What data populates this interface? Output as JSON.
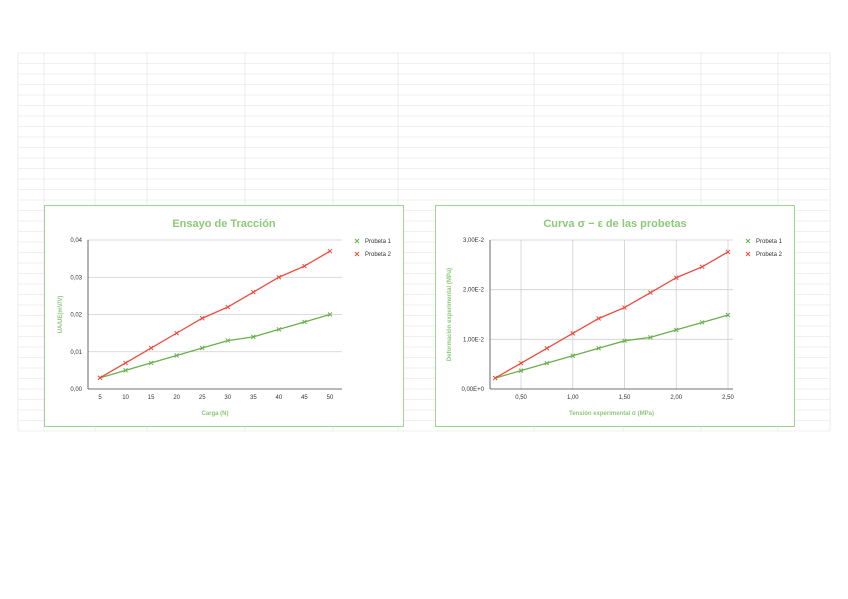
{
  "colors": {
    "accent": "#8cc97a",
    "series1": "#6ab04c",
    "series2": "#f04a3c",
    "frame": "#9fd18f"
  },
  "chart_data": [
    {
      "type": "line",
      "title": "Ensayo de Tracción",
      "xlabel": "Carga (N)",
      "ylabel": "UA/UE(mV/V)",
      "categories": [
        "5",
        "10",
        "15",
        "20",
        "25",
        "30",
        "35",
        "40",
        "45",
        "50"
      ],
      "yticks": [
        "0,00",
        "0,01",
        "0,02",
        "0,03",
        "0,04"
      ],
      "ylim": [
        0,
        0.04
      ],
      "grid": "horizontal",
      "legend": "right",
      "series": [
        {
          "name": "Probeta 1",
          "values": [
            0.003,
            0.005,
            0.007,
            0.009,
            0.011,
            0.013,
            0.014,
            0.016,
            0.018,
            0.02
          ]
        },
        {
          "name": "Probeta 2",
          "values": [
            0.003,
            0.007,
            0.011,
            0.015,
            0.019,
            0.022,
            0.026,
            0.03,
            0.033,
            0.037
          ]
        }
      ]
    },
    {
      "type": "scatter",
      "title": "Curva σ − ε de las probetas",
      "xlabel": "Tensión experimental σ  (MPa)",
      "ylabel": "Deformación experimental (MPa)",
      "x": [
        0.25,
        0.5,
        0.75,
        1.0,
        1.25,
        1.5,
        1.75,
        2.0,
        2.25,
        2.5
      ],
      "xticks": [
        "0,50",
        "1,00",
        "1,50",
        "2,00",
        "2,50"
      ],
      "xtick_values": [
        0.5,
        1.0,
        1.5,
        2.0,
        2.5
      ],
      "yticks": [
        "0,00E+0",
        "1,00E-2",
        "2,00E-2",
        "3,00E-2"
      ],
      "xlim": [
        0.2,
        2.5
      ],
      "ylim": [
        0,
        0.03
      ],
      "grid": "both",
      "legend": "right",
      "series": [
        {
          "name": "Probeta 1",
          "values": [
            0.0022,
            0.0037,
            0.0052,
            0.0067,
            0.0082,
            0.0097,
            0.0104,
            0.0119,
            0.0134,
            0.0149
          ]
        },
        {
          "name": "Probeta 2",
          "values": [
            0.0022,
            0.0052,
            0.0082,
            0.0112,
            0.0142,
            0.0164,
            0.0194,
            0.0224,
            0.0246,
            0.0276
          ]
        }
      ]
    }
  ]
}
